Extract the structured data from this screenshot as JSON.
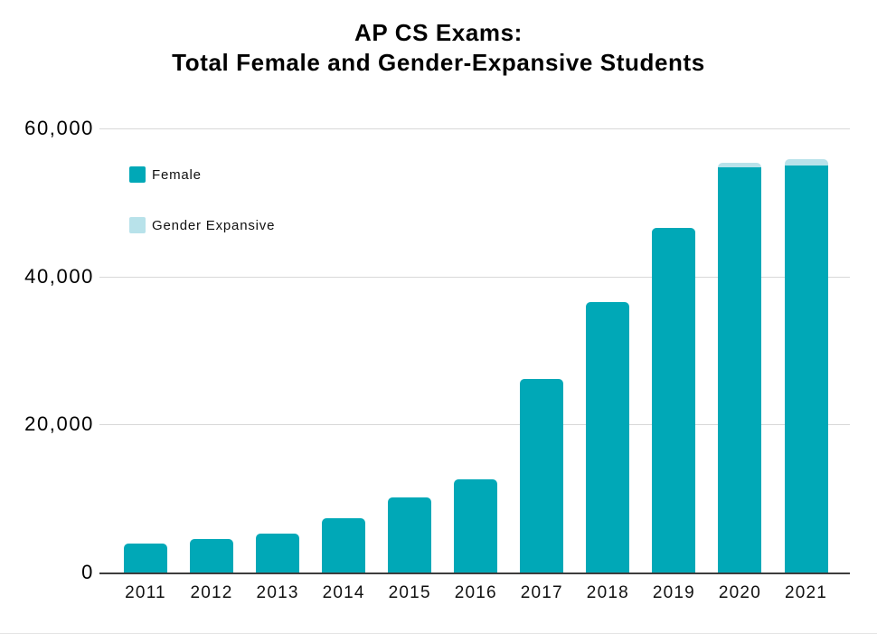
{
  "title": {
    "line1": "AP CS Exams:",
    "line2": "Total Female and Gender-Expansive Students"
  },
  "legend": [
    {
      "label": "Female",
      "color": "#00a8b7"
    },
    {
      "label": "Gender Expansive",
      "color": "#b8e2ea"
    }
  ],
  "colors": {
    "female_bar": "#00a8b7",
    "gender_expansive_bar": "#b8e2ea",
    "gridline": "#d8d8d8",
    "axis_line": "#3d3d3d",
    "text": "#000000"
  },
  "chart_data": {
    "type": "bar",
    "stacked": true,
    "title": "AP CS Exams: Total Female and Gender-Expansive Students",
    "xlabel": "",
    "ylabel": "",
    "categories": [
      "2011",
      "2012",
      "2013",
      "2014",
      "2015",
      "2016",
      "2017",
      "2018",
      "2019",
      "2020",
      "2021"
    ],
    "series": [
      {
        "name": "Female",
        "color": "#00a8b7",
        "values": [
          3900,
          4500,
          5300,
          7300,
          10100,
          12600,
          26200,
          36600,
          46600,
          54800,
          55000
        ]
      },
      {
        "name": "Gender Expansive",
        "color": "#b8e2ea",
        "values": [
          0,
          0,
          0,
          0,
          0,
          0,
          0,
          0,
          0,
          500,
          800
        ]
      }
    ],
    "ylim": [
      0,
      60000
    ],
    "yticks": [
      0,
      20000,
      40000,
      60000
    ],
    "ytick_labels": [
      "0",
      "20,000",
      "40,000",
      "60,000"
    ],
    "grid": true,
    "legend_position": "upper-left-inside"
  }
}
